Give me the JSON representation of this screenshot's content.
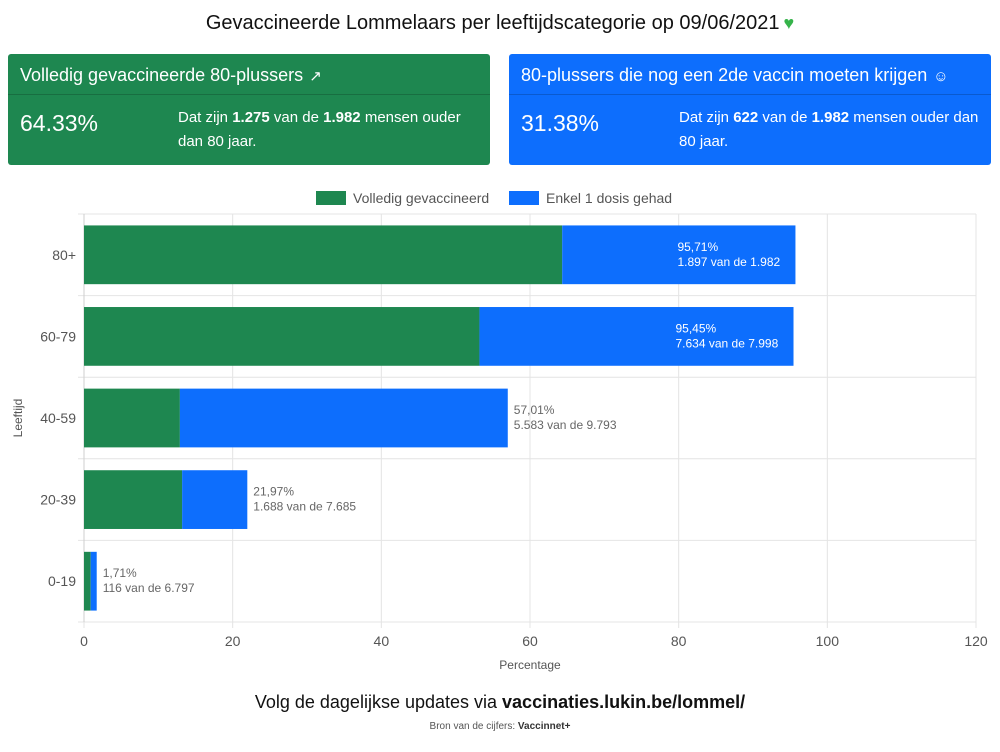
{
  "title": "Gevaccineerde Lommelaars per leeftijdscategorie op 09/06/2021",
  "title_icon": "green-heart-icon",
  "cards": [
    {
      "heading": "Volledig gevaccineerde 80-plussers",
      "icon": "rocket-icon",
      "percentage": "64.33%",
      "desc_prefix": "Dat zijn ",
      "count": "1.275",
      "desc_mid": " van de ",
      "total": "1.982",
      "desc_suffix": " mensen ouder dan 80 jaar.",
      "color": "#1e8750"
    },
    {
      "heading": "80-plussers die nog een 2de vaccin moeten krijgen",
      "icon": "hugging-face-icon",
      "percentage": "31.38%",
      "desc_prefix": "Dat zijn ",
      "count": "622",
      "desc_mid": " van de ",
      "total": "1.982",
      "desc_suffix": " mensen ouder dan 80 jaar.",
      "color": "#0d6efd"
    }
  ],
  "chart_data": {
    "type": "bar",
    "orientation": "horizontal",
    "stacked": true,
    "categories": [
      "80+",
      "60-79",
      "40-59",
      "20-39",
      "0-19"
    ],
    "series": [
      {
        "name": "Volledig gevaccineerd",
        "color": "#1e8750",
        "values": [
          64.33,
          53.2,
          12.9,
          13.2,
          0.9
        ]
      },
      {
        "name": "Enkel 1 dosis gehad",
        "color": "#0d6efd",
        "values": [
          31.38,
          42.25,
          44.11,
          8.77,
          0.81
        ]
      }
    ],
    "bar_labels": [
      [
        "95,71%",
        "1.897 van de 1.982"
      ],
      [
        "95,45%",
        "7.634 van de 7.998"
      ],
      [
        "57,01%",
        "5.583 van de 9.793"
      ],
      [
        "21,97%",
        "1.688 van de 7.685"
      ],
      [
        "1,71%",
        "116 van de 6.797"
      ]
    ],
    "xlabel": "Percentage",
    "ylabel": "Leeftijd",
    "xlim": [
      0,
      120
    ],
    "xticks": [
      0,
      20,
      40,
      60,
      80,
      100,
      120
    ],
    "grid": true,
    "legend_position": "top"
  },
  "footer": {
    "prefix": "Volg de dagelijkse updates via ",
    "link": "vaccinaties.lukin.be/lommel/"
  },
  "source": {
    "prefix": "Bron van de cijfers: ",
    "name": "Vaccinnet+"
  }
}
